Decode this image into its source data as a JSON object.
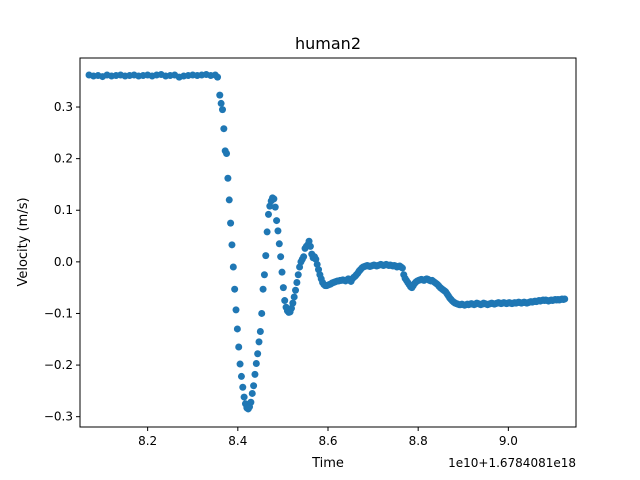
{
  "chart_data": {
    "type": "scatter",
    "title": "human2",
    "xlabel": "Time",
    "ylabel": "Velocity (m/s)",
    "x_offset_label": "1e10+1.6784081e18",
    "xlim": [
      8.05,
      9.15
    ],
    "ylim": [
      -0.32,
      0.395
    ],
    "x_ticks": [
      8.2,
      8.4,
      8.6,
      8.8,
      9.0
    ],
    "x_tick_labels": [
      "8.2",
      "8.4",
      "8.6",
      "8.8",
      "9.0"
    ],
    "y_ticks": [
      -0.3,
      -0.2,
      -0.1,
      0.0,
      0.1,
      0.2,
      0.3
    ],
    "y_tick_labels": [
      "−0.3",
      "−0.2",
      "−0.1",
      "0.0",
      "0.1",
      "0.2",
      "0.3"
    ],
    "grid": false,
    "marker_color": "#1f77b4",
    "series": [
      {
        "points": [
          [
            8.07,
            0.362
          ],
          [
            8.08,
            0.36
          ],
          [
            8.09,
            0.361
          ],
          [
            8.1,
            0.359
          ],
          [
            8.11,
            0.362
          ],
          [
            8.12,
            0.36
          ],
          [
            8.13,
            0.361
          ],
          [
            8.14,
            0.362
          ],
          [
            8.15,
            0.36
          ],
          [
            8.16,
            0.361
          ],
          [
            8.17,
            0.362
          ],
          [
            8.18,
            0.36
          ],
          [
            8.19,
            0.361
          ],
          [
            8.2,
            0.362
          ],
          [
            8.21,
            0.36
          ],
          [
            8.22,
            0.362
          ],
          [
            8.23,
            0.363
          ],
          [
            8.24,
            0.36
          ],
          [
            8.25,
            0.361
          ],
          [
            8.26,
            0.362
          ],
          [
            8.27,
            0.358
          ],
          [
            8.28,
            0.36
          ],
          [
            8.29,
            0.361
          ],
          [
            8.3,
            0.362
          ],
          [
            8.31,
            0.361
          ],
          [
            8.32,
            0.362
          ],
          [
            8.33,
            0.363
          ],
          [
            8.34,
            0.361
          ],
          [
            8.35,
            0.362
          ],
          [
            8.355,
            0.358
          ],
          [
            8.36,
            0.323
          ],
          [
            8.363,
            0.307
          ],
          [
            8.366,
            0.295
          ],
          [
            8.369,
            0.258
          ],
          [
            8.372,
            0.215
          ],
          [
            8.375,
            0.21
          ],
          [
            8.378,
            0.162
          ],
          [
            8.381,
            0.12
          ],
          [
            8.384,
            0.075
          ],
          [
            8.387,
            0.033
          ],
          [
            8.39,
            -0.01
          ],
          [
            8.393,
            -0.053
          ],
          [
            8.396,
            -0.093
          ],
          [
            8.399,
            -0.13
          ],
          [
            8.402,
            -0.165
          ],
          [
            8.405,
            -0.198
          ],
          [
            8.408,
            -0.222
          ],
          [
            8.411,
            -0.243
          ],
          [
            8.414,
            -0.262
          ],
          [
            8.417,
            -0.275
          ],
          [
            8.42,
            -0.283
          ],
          [
            8.423,
            -0.285
          ],
          [
            8.426,
            -0.281
          ],
          [
            8.429,
            -0.272
          ],
          [
            8.432,
            -0.255
          ],
          [
            8.435,
            -0.24
          ],
          [
            8.438,
            -0.218
          ],
          [
            8.441,
            -0.197
          ],
          [
            8.444,
            -0.178
          ],
          [
            8.447,
            -0.155
          ],
          [
            8.45,
            -0.135
          ],
          [
            8.453,
            -0.1
          ],
          [
            8.456,
            -0.053
          ],
          [
            8.459,
            -0.025
          ],
          [
            8.462,
            0.012
          ],
          [
            8.465,
            0.058
          ],
          [
            8.468,
            0.092
          ],
          [
            8.471,
            0.108
          ],
          [
            8.474,
            0.118
          ],
          [
            8.477,
            0.124
          ],
          [
            8.48,
            0.122
          ],
          [
            8.483,
            0.106
          ],
          [
            8.486,
            0.08
          ],
          [
            8.489,
            0.06
          ],
          [
            8.492,
            0.035
          ],
          [
            8.495,
            0.01
          ],
          [
            8.498,
            -0.02
          ],
          [
            8.501,
            -0.05
          ],
          [
            8.504,
            -0.075
          ],
          [
            8.507,
            -0.088
          ],
          [
            8.51,
            -0.095
          ],
          [
            8.513,
            -0.098
          ],
          [
            8.516,
            -0.097
          ],
          [
            8.519,
            -0.09
          ],
          [
            8.522,
            -0.08
          ],
          [
            8.525,
            -0.068
          ],
          [
            8.528,
            -0.055
          ],
          [
            8.531,
            -0.04
          ],
          [
            8.534,
            -0.025
          ],
          [
            8.537,
            -0.01
          ],
          [
            8.54,
            0.0
          ],
          [
            8.543,
            0.005
          ],
          [
            8.546,
            0.01
          ],
          [
            8.549,
            0.026
          ],
          [
            8.552,
            0.03
          ],
          [
            8.555,
            0.033
          ],
          [
            8.558,
            0.04
          ],
          [
            8.561,
            0.03
          ],
          [
            8.564,
            0.015
          ],
          [
            8.567,
            0.008
          ],
          [
            8.57,
            0.01
          ],
          [
            8.573,
            0.005
          ],
          [
            8.576,
            -0.005
          ],
          [
            8.579,
            -0.015
          ],
          [
            8.582,
            -0.025
          ],
          [
            8.585,
            -0.033
          ],
          [
            8.588,
            -0.04
          ],
          [
            8.591,
            -0.044
          ],
          [
            8.594,
            -0.046
          ],
          [
            8.597,
            -0.046
          ],
          [
            8.6,
            -0.045
          ],
          [
            8.603,
            -0.044
          ],
          [
            8.606,
            -0.043
          ],
          [
            8.609,
            -0.041
          ],
          [
            8.612,
            -0.04
          ],
          [
            8.615,
            -0.039
          ],
          [
            8.618,
            -0.038
          ],
          [
            8.621,
            -0.037
          ],
          [
            8.624,
            -0.037
          ],
          [
            8.627,
            -0.036
          ],
          [
            8.63,
            -0.036
          ],
          [
            8.633,
            -0.035
          ],
          [
            8.636,
            -0.036
          ],
          [
            8.639,
            -0.037
          ],
          [
            8.642,
            -0.035
          ],
          [
            8.645,
            -0.033
          ],
          [
            8.648,
            -0.036
          ],
          [
            8.651,
            -0.038
          ],
          [
            8.654,
            -0.033
          ],
          [
            8.657,
            -0.03
          ],
          [
            8.66,
            -0.028
          ],
          [
            8.663,
            -0.025
          ],
          [
            8.666,
            -0.022
          ],
          [
            8.669,
            -0.018
          ],
          [
            8.672,
            -0.015
          ],
          [
            8.675,
            -0.012
          ],
          [
            8.678,
            -0.01
          ],
          [
            8.681,
            -0.009
          ],
          [
            8.684,
            -0.008
          ],
          [
            8.687,
            -0.007
          ],
          [
            8.69,
            -0.008
          ],
          [
            8.693,
            -0.009
          ],
          [
            8.696,
            -0.008
          ],
          [
            8.699,
            -0.007
          ],
          [
            8.702,
            -0.006
          ],
          [
            8.705,
            -0.007
          ],
          [
            8.708,
            -0.008
          ],
          [
            8.711,
            -0.007
          ],
          [
            8.714,
            -0.006
          ],
          [
            8.717,
            -0.005
          ],
          [
            8.72,
            -0.006
          ],
          [
            8.723,
            -0.007
          ],
          [
            8.726,
            -0.006
          ],
          [
            8.729,
            -0.005
          ],
          [
            8.732,
            -0.006
          ],
          [
            8.735,
            -0.007
          ],
          [
            8.738,
            -0.006
          ],
          [
            8.741,
            -0.007
          ],
          [
            8.744,
            -0.008
          ],
          [
            8.747,
            -0.007
          ],
          [
            8.75,
            -0.008
          ],
          [
            8.753,
            -0.01
          ],
          [
            8.756,
            -0.009
          ],
          [
            8.759,
            -0.008
          ],
          [
            8.762,
            -0.01
          ],
          [
            8.765,
            -0.012
          ],
          [
            8.768,
            -0.025
          ],
          [
            8.771,
            -0.032
          ],
          [
            8.774,
            -0.036
          ],
          [
            8.777,
            -0.04
          ],
          [
            8.78,
            -0.044
          ],
          [
            8.783,
            -0.048
          ],
          [
            8.786,
            -0.05
          ],
          [
            8.789,
            -0.046
          ],
          [
            8.792,
            -0.042
          ],
          [
            8.795,
            -0.039
          ],
          [
            8.798,
            -0.037
          ],
          [
            8.801,
            -0.036
          ],
          [
            8.804,
            -0.035
          ],
          [
            8.807,
            -0.034
          ],
          [
            8.81,
            -0.035
          ],
          [
            8.813,
            -0.036
          ],
          [
            8.816,
            -0.034
          ],
          [
            8.819,
            -0.033
          ],
          [
            8.822,
            -0.034
          ],
          [
            8.825,
            -0.036
          ],
          [
            8.828,
            -0.037
          ],
          [
            8.831,
            -0.036
          ],
          [
            8.834,
            -0.038
          ],
          [
            8.837,
            -0.04
          ],
          [
            8.84,
            -0.042
          ],
          [
            8.843,
            -0.044
          ],
          [
            8.846,
            -0.047
          ],
          [
            8.849,
            -0.05
          ],
          [
            8.852,
            -0.052
          ],
          [
            8.855,
            -0.054
          ],
          [
            8.858,
            -0.056
          ],
          [
            8.861,
            -0.058
          ],
          [
            8.864,
            -0.062
          ],
          [
            8.867,
            -0.066
          ],
          [
            8.87,
            -0.07
          ],
          [
            8.873,
            -0.073
          ],
          [
            8.876,
            -0.076
          ],
          [
            8.879,
            -0.078
          ],
          [
            8.882,
            -0.08
          ],
          [
            8.885,
            -0.081
          ],
          [
            8.888,
            -0.082
          ],
          [
            8.891,
            -0.083
          ],
          [
            8.894,
            -0.083
          ],
          [
            8.897,
            -0.082
          ],
          [
            8.9,
            -0.083
          ],
          [
            8.903,
            -0.084
          ],
          [
            8.906,
            -0.083
          ],
          [
            8.909,
            -0.082
          ],
          [
            8.912,
            -0.083
          ],
          [
            8.915,
            -0.082
          ],
          [
            8.918,
            -0.081
          ],
          [
            8.921,
            -0.082
          ],
          [
            8.924,
            -0.083
          ],
          [
            8.927,
            -0.082
          ],
          [
            8.93,
            -0.08
          ],
          [
            8.933,
            -0.081
          ],
          [
            8.936,
            -0.082
          ],
          [
            8.939,
            -0.083
          ],
          [
            8.942,
            -0.082
          ],
          [
            8.945,
            -0.08
          ],
          [
            8.948,
            -0.081
          ],
          [
            8.951,
            -0.082
          ],
          [
            8.954,
            -0.083
          ],
          [
            8.957,
            -0.082
          ],
          [
            8.96,
            -0.081
          ],
          [
            8.963,
            -0.08
          ],
          [
            8.966,
            -0.081
          ],
          [
            8.969,
            -0.082
          ],
          [
            8.972,
            -0.081
          ],
          [
            8.975,
            -0.08
          ],
          [
            8.978,
            -0.079
          ],
          [
            8.981,
            -0.08
          ],
          [
            8.984,
            -0.081
          ],
          [
            8.987,
            -0.08
          ],
          [
            8.99,
            -0.079
          ],
          [
            8.993,
            -0.08
          ],
          [
            8.996,
            -0.081
          ],
          [
            8.999,
            -0.08
          ],
          [
            9.002,
            -0.079
          ],
          [
            9.005,
            -0.08
          ],
          [
            9.008,
            -0.081
          ],
          [
            9.011,
            -0.08
          ],
          [
            9.014,
            -0.079
          ],
          [
            9.017,
            -0.08
          ],
          [
            9.02,
            -0.079
          ],
          [
            9.023,
            -0.078
          ],
          [
            9.026,
            -0.079
          ],
          [
            9.029,
            -0.08
          ],
          [
            9.032,
            -0.079
          ],
          [
            9.035,
            -0.078
          ],
          [
            9.038,
            -0.079
          ],
          [
            9.041,
            -0.08
          ],
          [
            9.044,
            -0.079
          ],
          [
            9.047,
            -0.078
          ],
          [
            9.05,
            -0.077
          ],
          [
            9.053,
            -0.078
          ],
          [
            9.056,
            -0.077
          ],
          [
            9.059,
            -0.076
          ],
          [
            9.062,
            -0.077
          ],
          [
            9.065,
            -0.076
          ],
          [
            9.068,
            -0.075
          ],
          [
            9.071,
            -0.076
          ],
          [
            9.074,
            -0.075
          ],
          [
            9.077,
            -0.074
          ],
          [
            9.08,
            -0.075
          ],
          [
            9.083,
            -0.074
          ],
          [
            9.086,
            -0.075
          ],
          [
            9.089,
            -0.076
          ],
          [
            9.092,
            -0.075
          ],
          [
            9.095,
            -0.074
          ],
          [
            9.098,
            -0.075
          ],
          [
            9.101,
            -0.074
          ],
          [
            9.104,
            -0.073
          ],
          [
            9.107,
            -0.074
          ],
          [
            9.11,
            -0.073
          ],
          [
            9.113,
            -0.074
          ],
          [
            9.116,
            -0.073
          ],
          [
            9.119,
            -0.072
          ],
          [
            9.122,
            -0.073
          ],
          [
            9.125,
            -0.072
          ]
        ]
      }
    ]
  }
}
